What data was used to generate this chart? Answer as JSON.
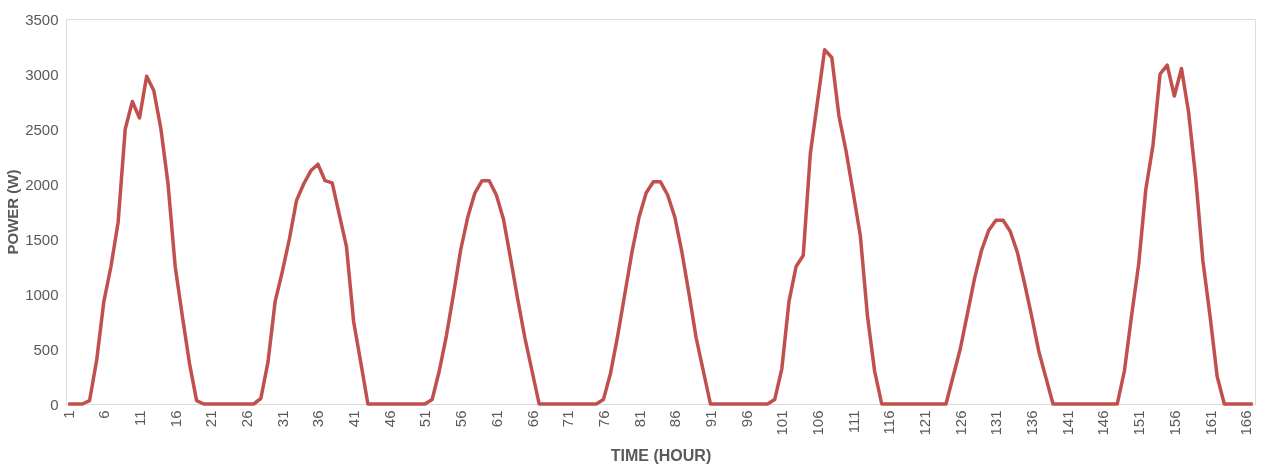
{
  "chart_data": {
    "type": "line",
    "xlabel": "TIME (HOUR)",
    "ylabel": "POWER (W)",
    "categories": [
      "1",
      null,
      null,
      null,
      null,
      "6",
      null,
      null,
      null,
      null,
      "11",
      null,
      null,
      null,
      null,
      "16",
      null,
      null,
      null,
      null,
      "21",
      null,
      null,
      null,
      null,
      "26",
      null,
      null,
      null,
      null,
      "31",
      null,
      null,
      null,
      null,
      "36",
      null,
      null,
      null,
      null,
      "41",
      null,
      null,
      null,
      null,
      "46",
      null,
      null,
      null,
      null,
      "51",
      null,
      null,
      null,
      null,
      "56",
      null,
      null,
      null,
      null,
      "61",
      null,
      null,
      null,
      null,
      "66",
      null,
      null,
      null,
      null,
      "71",
      null,
      null,
      null,
      null,
      "76",
      null,
      null,
      null,
      null,
      "81",
      null,
      null,
      null,
      null,
      "86",
      null,
      null,
      null,
      null,
      "91",
      null,
      null,
      null,
      null,
      "96",
      null,
      null,
      null,
      null,
      "101",
      null,
      null,
      null,
      null,
      "106",
      null,
      null,
      null,
      null,
      "111",
      null,
      null,
      null,
      null,
      "116",
      null,
      null,
      null,
      null,
      "121",
      null,
      null,
      null,
      null,
      "126",
      null,
      null,
      null,
      null,
      "131",
      null,
      null,
      null,
      null,
      "136",
      null,
      null,
      null,
      null,
      "141",
      null,
      null,
      null,
      null,
      "146",
      null,
      null,
      null,
      null,
      "151",
      null,
      null,
      null,
      null,
      "156",
      null,
      null,
      null,
      null,
      "161",
      null,
      null,
      null,
      null,
      "166",
      null
    ],
    "series": [
      {
        "color": "#c0504d",
        "values": [
          0,
          0,
          0,
          30,
          400,
          930,
          1250,
          1650,
          2500,
          2750,
          2600,
          2980,
          2850,
          2500,
          2000,
          1250,
          800,
          370,
          30,
          0,
          0,
          0,
          0,
          0,
          0,
          0,
          0,
          50,
          380,
          930,
          1200,
          1500,
          1850,
          2000,
          2120,
          2180,
          2030,
          2010,
          1720,
          1430,
          750,
          380,
          0,
          0,
          0,
          0,
          0,
          0,
          0,
          0,
          0,
          40,
          300,
          620,
          1000,
          1400,
          1700,
          1920,
          2030,
          2030,
          1900,
          1680,
          1320,
          950,
          600,
          300,
          0,
          0,
          0,
          0,
          0,
          0,
          0,
          0,
          0,
          40,
          280,
          620,
          1000,
          1380,
          1700,
          1920,
          2020,
          2020,
          1900,
          1700,
          1380,
          1000,
          600,
          300,
          0,
          0,
          0,
          0,
          0,
          0,
          0,
          0,
          0,
          40,
          320,
          930,
          1250,
          1350,
          2280,
          2750,
          3220,
          3150,
          2620,
          2300,
          1920,
          1530,
          800,
          300,
          0,
          0,
          0,
          0,
          0,
          0,
          0,
          0,
          0,
          0,
          250,
          500,
          820,
          1140,
          1400,
          1580,
          1670,
          1670,
          1570,
          1380,
          1100,
          800,
          480,
          240,
          0,
          0,
          0,
          0,
          0,
          0,
          0,
          0,
          0,
          0,
          300,
          800,
          1270,
          1950,
          2350,
          3000,
          3080,
          2800,
          3050,
          2650,
          2050,
          1300,
          800,
          250,
          0,
          0,
          0,
          0,
          0
        ]
      }
    ],
    "ylim": [
      0,
      3500
    ],
    "yticks": [
      0,
      500,
      1000,
      1500,
      2000,
      2500,
      3000,
      3500
    ],
    "grid": false
  }
}
